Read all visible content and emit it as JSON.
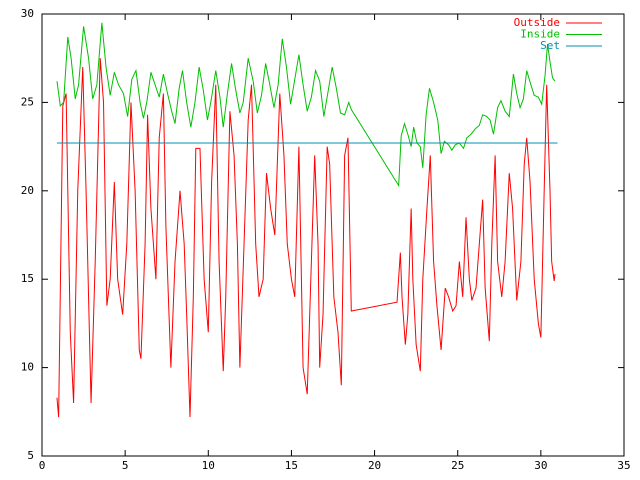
{
  "chart_data": {
    "type": "line",
    "xlim": [
      0,
      35
    ],
    "xticks": [
      0,
      5,
      10,
      15,
      20,
      25,
      30,
      35
    ],
    "ylim": [
      5,
      30
    ],
    "yticks": [
      5,
      10,
      15,
      20,
      25,
      30
    ],
    "grid": false,
    "legend": "top-right",
    "series": [
      {
        "name": "Outside",
        "color": "#ff0000",
        "x": [
          0.9,
          1.0,
          1.25,
          1.45,
          1.7,
          1.9,
          2.15,
          2.45,
          2.65,
          2.95,
          3.2,
          3.5,
          3.7,
          3.9,
          4.1,
          4.35,
          4.55,
          4.85,
          5.1,
          5.35,
          5.6,
          5.85,
          5.95,
          6.2,
          6.35,
          6.55,
          6.85,
          7.05,
          7.3,
          7.45,
          7.75,
          8.0,
          8.3,
          8.55,
          8.7,
          8.9,
          9.1,
          9.25,
          9.5,
          9.75,
          10.0,
          10.2,
          10.45,
          10.65,
          10.9,
          11.05,
          11.3,
          11.55,
          11.75,
          11.9,
          12.15,
          12.4,
          12.6,
          12.85,
          13.05,
          13.3,
          13.5,
          13.75,
          14.0,
          14.3,
          14.55,
          14.75,
          15.0,
          15.2,
          15.45,
          15.7,
          15.95,
          16.2,
          16.4,
          16.6,
          16.7,
          16.9,
          17.15,
          17.3,
          17.55,
          17.8,
          18.0,
          18.2,
          18.4,
          18.6,
          21.35,
          21.55,
          21.65,
          21.85,
          22.0,
          22.2,
          22.3,
          22.5,
          22.75,
          22.9,
          23.15,
          23.35,
          23.55,
          23.75,
          24.0,
          24.25,
          24.45,
          24.7,
          24.9,
          25.1,
          25.3,
          25.5,
          25.7,
          25.85,
          26.1,
          26.3,
          26.5,
          26.65,
          26.9,
          27.05,
          27.25,
          27.4,
          27.65,
          27.85,
          28.1,
          28.3,
          28.55,
          28.8,
          29.0,
          29.15,
          29.35,
          29.6,
          29.85,
          30.0,
          30.2,
          30.35,
          30.55,
          30.65,
          30.8,
          30.85
        ],
        "values": [
          8.3,
          7.2,
          24.8,
          25.5,
          12,
          8,
          20,
          27,
          20,
          8,
          16,
          27.5,
          25,
          13.5,
          15,
          20.5,
          15,
          13,
          17,
          25,
          20,
          11,
          10.5,
          17,
          24.3,
          19,
          15,
          23,
          25.5,
          18,
          10,
          16,
          20,
          17,
          13,
          7.2,
          14,
          22.4,
          22.4,
          15,
          12,
          20.5,
          26,
          16,
          9.8,
          14,
          24.5,
          22,
          17,
          10,
          17,
          24,
          26,
          17,
          14,
          15,
          21,
          19,
          17.5,
          25.5,
          22,
          17,
          15,
          14,
          22.5,
          10,
          8.5,
          16,
          22,
          17,
          10,
          13,
          22.5,
          21.5,
          14,
          12,
          9,
          22,
          23,
          13.2,
          13.7,
          16.5,
          14,
          11.3,
          13,
          19,
          15,
          11.3,
          9.8,
          15,
          19,
          22,
          16,
          13.5,
          11,
          14.5,
          14,
          13.2,
          13.5,
          16,
          14,
          18.5,
          15,
          13.8,
          14.5,
          17,
          19.5,
          14.5,
          11.5,
          17,
          22,
          16,
          14,
          16,
          21,
          19,
          13.8,
          16,
          21.5,
          23,
          20.5,
          15,
          12.5,
          11.7,
          20,
          26,
          20,
          16,
          14.9,
          15.3
        ]
      },
      {
        "name": "Inside",
        "color": "#00c000",
        "x": [
          0.9,
          1.1,
          1.3,
          1.55,
          1.75,
          2.0,
          2.2,
          2.5,
          2.8,
          3.05,
          3.3,
          3.6,
          3.85,
          4.1,
          4.35,
          4.6,
          4.9,
          5.15,
          5.4,
          5.65,
          5.9,
          6.1,
          6.3,
          6.55,
          6.8,
          7.05,
          7.3,
          7.55,
          7.8,
          8.0,
          8.25,
          8.45,
          8.7,
          8.95,
          9.2,
          9.45,
          9.7,
          9.95,
          10.15,
          10.45,
          10.7,
          10.9,
          11.15,
          11.4,
          11.65,
          11.9,
          12.1,
          12.4,
          12.7,
          12.95,
          13.2,
          13.45,
          13.7,
          13.95,
          14.2,
          14.45,
          14.7,
          14.95,
          15.2,
          15.45,
          15.7,
          15.95,
          16.2,
          16.45,
          16.7,
          16.95,
          17.2,
          17.45,
          17.7,
          17.95,
          18.2,
          18.45,
          18.6,
          21.45,
          21.6,
          21.8,
          22.0,
          22.2,
          22.35,
          22.55,
          22.75,
          22.9,
          23.1,
          23.3,
          23.55,
          23.8,
          24.0,
          24.2,
          24.45,
          24.65,
          24.85,
          25.1,
          25.35,
          25.55,
          25.8,
          26.05,
          26.3,
          26.5,
          26.75,
          26.95,
          27.15,
          27.4,
          27.6,
          27.85,
          28.1,
          28.35,
          28.55,
          28.75,
          28.95,
          29.15,
          29.4,
          29.6,
          29.85,
          30.05,
          30.25,
          30.4,
          30.55,
          30.7,
          30.85
        ],
        "values": [
          26.2,
          24.8,
          25,
          28.7,
          27.5,
          25.2,
          26,
          29.3,
          27.5,
          25.2,
          26,
          29.5,
          27,
          25.4,
          26.7,
          26,
          25.5,
          24.2,
          26.3,
          26.8,
          25,
          24.1,
          25,
          26.7,
          26,
          25.3,
          26.6,
          25.5,
          24.5,
          23.8,
          25.8,
          26.8,
          25,
          23.6,
          25,
          27,
          25.7,
          24,
          25,
          26.8,
          25.3,
          23.6,
          25.5,
          27.2,
          25.7,
          24.4,
          25,
          27.5,
          26.2,
          24.4,
          25.4,
          27.2,
          26,
          24.7,
          26,
          28.6,
          27,
          24.9,
          26.3,
          27.7,
          26,
          24.5,
          25.3,
          26.8,
          26.2,
          24.2,
          25.6,
          27,
          25.8,
          24.4,
          24.3,
          25,
          24.6,
          20.3,
          23.1,
          23.8,
          23.2,
          22.5,
          23.6,
          22.7,
          22.5,
          21.3,
          24.3,
          25.8,
          25,
          24,
          22.1,
          22.8,
          22.6,
          22.3,
          22.6,
          22.7,
          22.4,
          23,
          23.2,
          23.5,
          23.7,
          24.3,
          24.2,
          24,
          23.2,
          24.7,
          25.1,
          24.5,
          24.2,
          26.6,
          25.5,
          24.7,
          25.2,
          26.8,
          26,
          25.4,
          25.3,
          24.9,
          26.5,
          28.3,
          27.3,
          26.4,
          26.2
        ]
      },
      {
        "name": "Set",
        "color": "#0090b0",
        "x": [
          0.9,
          31
        ],
        "values": [
          22.7,
          22.7
        ]
      }
    ]
  }
}
